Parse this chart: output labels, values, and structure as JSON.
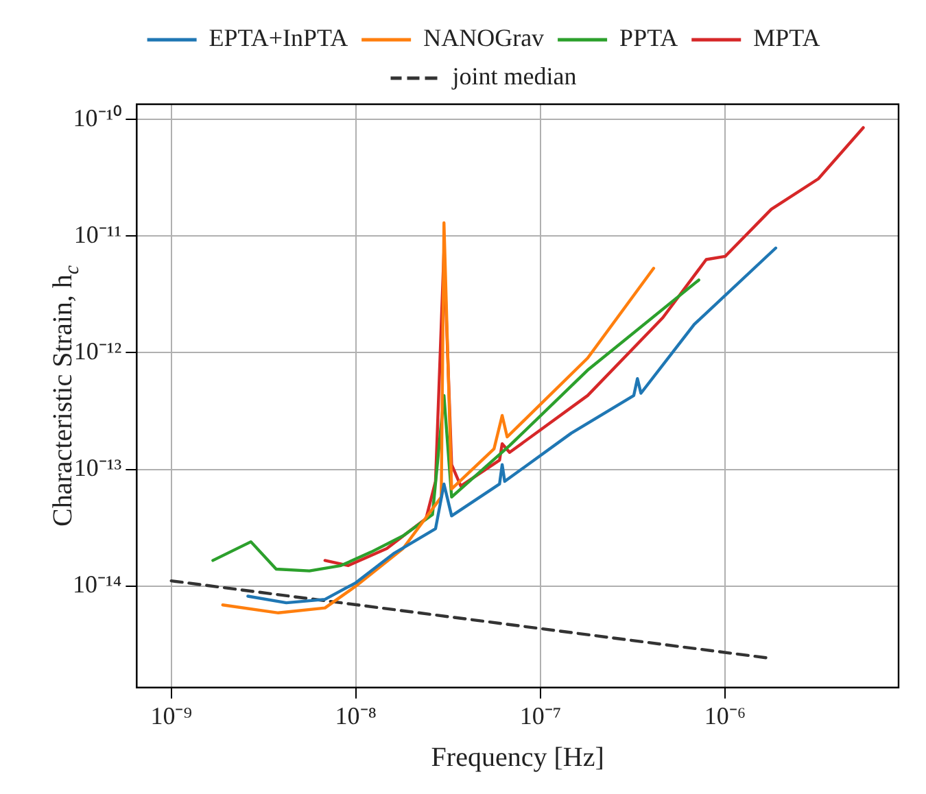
{
  "chart_data": {
    "type": "line",
    "xlabel": "Frequency [Hz]",
    "ylabel": "Characteristic Strain, h$_{c}$",
    "log": "xy",
    "grid": true,
    "legend": "top",
    "marker": "none",
    "xlim": [
      6.5e-10,
      8.7e-06
    ],
    "xticks": [
      {
        "value": 1e-09,
        "label": "10⁻⁹"
      },
      {
        "value": 1e-08,
        "label": "10⁻⁸"
      },
      {
        "value": 1e-07,
        "label": "10⁻⁷"
      },
      {
        "value": 1e-06,
        "label": "10⁻⁶"
      }
    ],
    "ylim": [
      1.35e-15,
      1.35e-10
    ],
    "yticks": [
      {
        "value": 1e-14,
        "label": "10⁻¹⁴"
      },
      {
        "value": 1e-13,
        "label": "10⁻¹³"
      },
      {
        "value": 1e-12,
        "label": "10⁻¹²"
      },
      {
        "value": 1e-11,
        "label": "10⁻¹¹"
      },
      {
        "value": 1e-10,
        "label": "10⁻¹⁰"
      }
    ],
    "series": [
      {
        "name": "EPTA+InPTA",
        "color": "#1f77b4",
        "line_style": "solid",
        "x": [
          2.6e-09,
          4.2e-09,
          6.8e-09,
          1e-08,
          1.6e-08,
          2.7e-08,
          3e-08,
          3.3e-08,
          6e-08,
          6.2e-08,
          6.4e-08,
          1.47e-07,
          3.2e-07,
          3.35e-07,
          3.5e-07,
          6.8e-07,
          1.88e-06
        ],
        "values": [
          8.2e-15,
          7.2e-15,
          7.7e-15,
          1.07e-14,
          1.9e-14,
          3.1e-14,
          7.5e-14,
          4e-14,
          7.5e-14,
          1.1e-13,
          7.9e-14,
          2.05e-13,
          4.3e-13,
          6e-13,
          4.5e-13,
          1.75e-12,
          7.9e-12
        ]
      },
      {
        "name": "NANOGrav",
        "color": "#ff7f0e",
        "line_style": "solid",
        "x": [
          1.9e-09,
          3.8e-09,
          6.8e-09,
          1e-08,
          1.8e-08,
          2.9e-08,
          3e-08,
          3.3e-08,
          5.6e-08,
          6.2e-08,
          6.6e-08,
          1.8e-07,
          4.1e-07
        ],
        "values": [
          6.9e-15,
          5.9e-15,
          6.5e-15,
          1e-14,
          2.1e-14,
          5.8e-14,
          1.3e-11,
          6.8e-14,
          1.5e-13,
          2.9e-13,
          1.9e-13,
          9e-13,
          5.3e-12
        ]
      },
      {
        "name": "PPTA",
        "color": "#2ca02c",
        "line_style": "solid",
        "x": [
          1.68e-09,
          2.7e-09,
          3.7e-09,
          5.6e-09,
          8.3e-09,
          1.21e-08,
          1.8e-08,
          2.6e-08,
          3e-08,
          3.3e-08,
          6.8e-08,
          1.8e-07,
          7.2e-07
        ],
        "values": [
          1.66e-14,
          2.4e-14,
          1.4e-14,
          1.35e-14,
          1.5e-14,
          1.96e-14,
          2.7e-14,
          4.1e-14,
          4.3e-13,
          5.8e-14,
          1.6e-13,
          7.1e-13,
          4.2e-12
        ]
      },
      {
        "name": "MPTA",
        "color": "#d62728",
        "line_style": "solid",
        "x": [
          6.8e-09,
          9.1e-09,
          1.47e-08,
          2.4e-08,
          2.7e-08,
          3e-08,
          3.3e-08,
          3.7e-08,
          6e-08,
          6.2e-08,
          6.8e-08,
          1.8e-07,
          4.6e-07,
          7.9e-07,
          1e-06,
          1.78e-06,
          3.2e-06,
          5.6e-06
        ],
        "values": [
          1.66e-14,
          1.5e-14,
          2.1e-14,
          3.8e-14,
          7.9e-14,
          7.4e-12,
          1.1e-13,
          7.2e-14,
          1.2e-13,
          1.66e-13,
          1.4e-13,
          4.3e-13,
          2e-12,
          6.3e-12,
          6.7e-12,
          1.7e-11,
          3.1e-11,
          8.5e-11
        ]
      },
      {
        "name": "joint median",
        "color": "#333333",
        "line_style": "dashed",
        "x": [
          1e-09,
          1.78e-06
        ],
        "values": [
          1.11e-14,
          2.4e-15
        ]
      }
    ]
  }
}
